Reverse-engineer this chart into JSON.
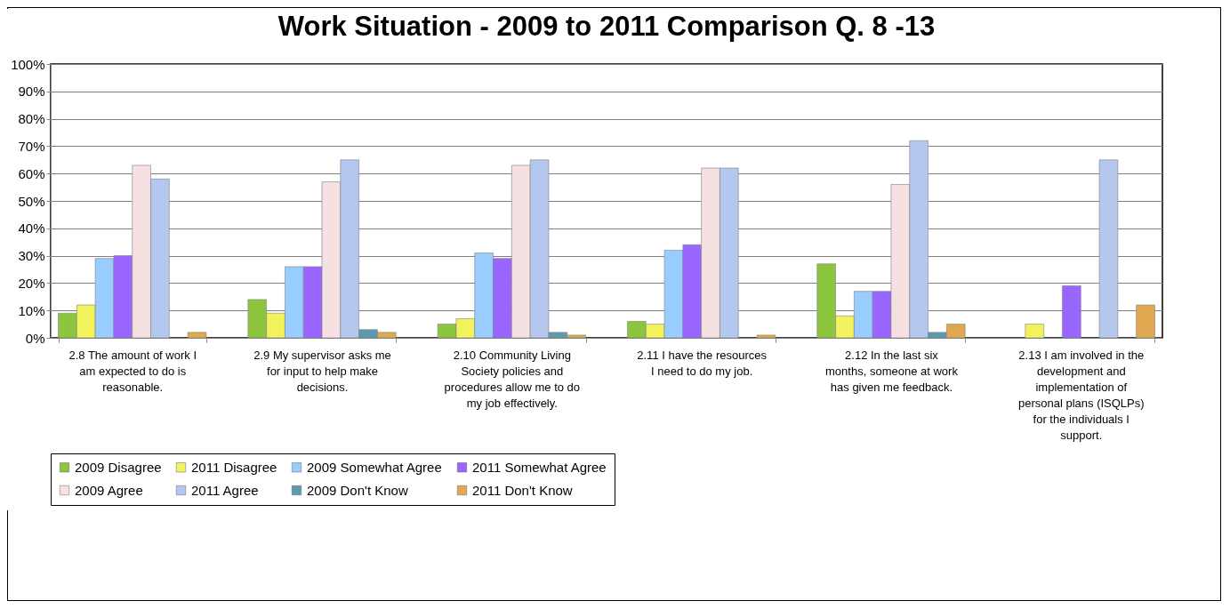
{
  "chart_data": {
    "type": "bar",
    "title": "Work Situation - 2009 to 2011 Comparison Q. 8 -13",
    "categories": [
      "2.8 The amount of work I am expected to do is reasonable.",
      "2.9 My supervisor asks me for input to help make decisions.",
      "2.10 Community Living Society policies and procedures allow me to do my job effectively.",
      "2.11 I have the resources I need to do my job.",
      "2.12 In the last six months, someone at work has given me feedback.",
      "2.13 I am involved in the development and implementation of personal plans (ISQLPs) for the individuals I support."
    ],
    "series": [
      {
        "name": "2009 Disagree",
        "color": "#8cc63f",
        "values": [
          9,
          14,
          5,
          6,
          27,
          null
        ]
      },
      {
        "name": "2011 Disagree",
        "color": "#f2f25c",
        "values": [
          12,
          9,
          7,
          5,
          8,
          5
        ]
      },
      {
        "name": "2009 Somewhat Agree",
        "color": "#99ccff",
        "values": [
          29,
          26,
          31,
          32,
          17,
          null
        ]
      },
      {
        "name": "2011 Somewhat Agree",
        "color": "#9966ff",
        "values": [
          30,
          26,
          29,
          34,
          17,
          19
        ]
      },
      {
        "name": "2009 Agree",
        "color": "#f5e1e1",
        "values": [
          63,
          57,
          63,
          62,
          56,
          null
        ]
      },
      {
        "name": "2011 Agree",
        "color": "#b4c7ee",
        "values": [
          58,
          65,
          65,
          62,
          72,
          65
        ]
      },
      {
        "name": "2009 Don't Know",
        "color": "#5b9bb0",
        "values": [
          null,
          3,
          2,
          null,
          2,
          null
        ]
      },
      {
        "name": "2011 Don't Know",
        "color": "#e0a850",
        "values": [
          2,
          2,
          1,
          1,
          5,
          12
        ]
      }
    ],
    "ylim": [
      0,
      100
    ],
    "yticks": [
      {
        "value": 0,
        "label": "0%"
      },
      {
        "value": 10,
        "label": "10%"
      },
      {
        "value": 20,
        "label": "20%"
      },
      {
        "value": 30,
        "label": "30%"
      },
      {
        "value": 40,
        "label": "40%"
      },
      {
        "value": 50,
        "label": "50%"
      },
      {
        "value": 60,
        "label": "60%"
      },
      {
        "value": 70,
        "label": "70%"
      },
      {
        "value": 80,
        "label": "80%"
      },
      {
        "value": 90,
        "label": "90%"
      },
      {
        "value": 100,
        "label": "100%"
      }
    ],
    "grid": "y",
    "legend": "bottom"
  }
}
